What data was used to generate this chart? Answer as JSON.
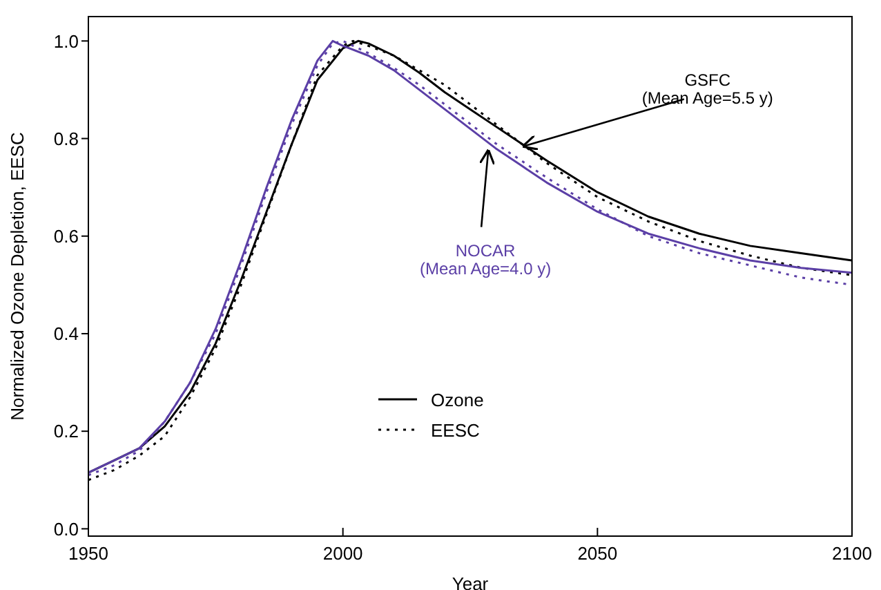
{
  "chart_data": {
    "type": "line",
    "xlabel": "Year",
    "ylabel": "Normalized Ozone Depletion, EESC",
    "xlim": [
      1950,
      2100
    ],
    "xticks": [
      1950,
      2000,
      2050,
      2100
    ],
    "ylim": [
      -0.015,
      1.05
    ],
    "yticks": [
      {
        "value": 0,
        "label": "0.0"
      },
      {
        "value": 0.2,
        "label": "0.2"
      },
      {
        "value": 0.4,
        "label": "0.4"
      },
      {
        "value": 0.6,
        "label": "0.6"
      },
      {
        "value": 0.8,
        "label": "0.8"
      },
      {
        "value": 1,
        "label": "1.0"
      }
    ],
    "grid": false,
    "legend": "bottom",
    "marker": "none",
    "series": [
      {
        "name": "Ozone",
        "color": "#000000",
        "line_style": "solid",
        "x": [
          1950,
          1955,
          1960,
          1965,
          1970,
          1975,
          1980,
          1985,
          1990,
          1995,
          2000,
          2003,
          2005,
          2010,
          2015,
          2020,
          2025,
          2030,
          2035,
          2040,
          2050,
          2060,
          2070,
          2080,
          2090,
          2100
        ],
        "values": [
          0.115,
          0.14,
          0.165,
          0.21,
          0.28,
          0.38,
          0.51,
          0.65,
          0.79,
          0.92,
          0.985,
          1.0,
          0.995,
          0.97,
          0.935,
          0.895,
          0.86,
          0.825,
          0.79,
          0.755,
          0.69,
          0.64,
          0.605,
          0.58,
          0.565,
          0.55
        ]
      },
      {
        "name": "EESC",
        "color": "#000000",
        "line_style": "dotted",
        "x": [
          1950,
          1955,
          1960,
          1965,
          1970,
          1975,
          1980,
          1985,
          1990,
          1995,
          2000,
          2002,
          2005,
          2010,
          2015,
          2020,
          2025,
          2030,
          2035,
          2040,
          2050,
          2060,
          2070,
          2080,
          2090,
          2100
        ],
        "values": [
          0.1,
          0.12,
          0.15,
          0.19,
          0.27,
          0.37,
          0.5,
          0.645,
          0.79,
          0.93,
          0.99,
          1.0,
          0.99,
          0.97,
          0.94,
          0.91,
          0.87,
          0.83,
          0.79,
          0.75,
          0.68,
          0.63,
          0.59,
          0.56,
          0.535,
          0.52
        ]
      },
      {
        "color": "#5b3fa6",
        "line_style": "solid",
        "x": [
          1950,
          1955,
          1960,
          1965,
          1970,
          1975,
          1980,
          1985,
          1990,
          1995,
          1998,
          2000,
          2005,
          2010,
          2015,
          2020,
          2025,
          2030,
          2035,
          2040,
          2050,
          2060,
          2070,
          2080,
          2090,
          2100
        ],
        "values": [
          0.115,
          0.14,
          0.165,
          0.22,
          0.3,
          0.41,
          0.55,
          0.7,
          0.84,
          0.96,
          1.0,
          0.99,
          0.97,
          0.94,
          0.9,
          0.86,
          0.82,
          0.78,
          0.745,
          0.71,
          0.65,
          0.605,
          0.575,
          0.55,
          0.535,
          0.525
        ]
      },
      {
        "color": "#5b3fa6",
        "line_style": "dotted",
        "x": [
          1950,
          1955,
          1960,
          1965,
          1970,
          1975,
          1980,
          1985,
          1990,
          1995,
          1998,
          2000,
          2005,
          2010,
          2015,
          2020,
          2025,
          2030,
          2035,
          2040,
          2050,
          2060,
          2070,
          2080,
          2090,
          2100
        ],
        "values": [
          0.11,
          0.13,
          0.16,
          0.22,
          0.3,
          0.4,
          0.54,
          0.69,
          0.83,
          0.95,
          0.995,
          1.0,
          0.975,
          0.945,
          0.91,
          0.87,
          0.83,
          0.79,
          0.755,
          0.72,
          0.655,
          0.6,
          0.565,
          0.54,
          0.515,
          0.5
        ]
      }
    ],
    "annotations": [
      {
        "text": "GSFC\n(Mean Age=5.5 y)",
        "x": 2035,
        "y": 0.79
      },
      {
        "text": "NOCAR\n(Mean Age=4.0 y)",
        "x": 2028,
        "y": 0.78
      }
    ]
  }
}
